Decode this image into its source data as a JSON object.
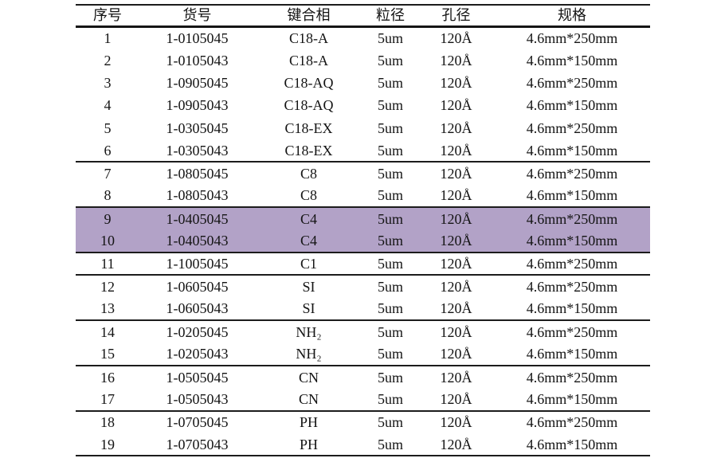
{
  "table": {
    "highlight_color": "#b2a2c7",
    "columns": [
      {
        "key": "no",
        "label": "序号"
      },
      {
        "key": "code",
        "label": "货号"
      },
      {
        "key": "phase",
        "label": "键合相"
      },
      {
        "key": "particle",
        "label": "粒径"
      },
      {
        "key": "pore",
        "label": "孔径"
      },
      {
        "key": "spec",
        "label": "规格"
      }
    ],
    "rows": [
      {
        "no": "1",
        "code": "1-0105045",
        "phase": "C18-A",
        "particle": "5um",
        "pore": "120Å",
        "spec": "4.6mm*250mm",
        "highlight": false,
        "group_end": false
      },
      {
        "no": "2",
        "code": "1-0105043",
        "phase": "C18-A",
        "particle": "5um",
        "pore": "120Å",
        "spec": "4.6mm*150mm",
        "highlight": false,
        "group_end": false
      },
      {
        "no": "3",
        "code": "1-0905045",
        "phase": "C18-AQ",
        "particle": "5um",
        "pore": "120Å",
        "spec": "4.6mm*250mm",
        "highlight": false,
        "group_end": false
      },
      {
        "no": "4",
        "code": "1-0905043",
        "phase": "C18-AQ",
        "particle": "5um",
        "pore": "120Å",
        "spec": "4.6mm*150mm",
        "highlight": false,
        "group_end": false
      },
      {
        "no": "5",
        "code": "1-0305045",
        "phase": "C18-EX",
        "particle": "5um",
        "pore": "120Å",
        "spec": "4.6mm*250mm",
        "highlight": false,
        "group_end": false
      },
      {
        "no": "6",
        "code": "1-0305043",
        "phase": "C18-EX",
        "particle": "5um",
        "pore": "120Å",
        "spec": "4.6mm*150mm",
        "highlight": false,
        "group_end": true
      },
      {
        "no": "7",
        "code": "1-0805045",
        "phase": "C8",
        "particle": "5um",
        "pore": "120Å",
        "spec": "4.6mm*250mm",
        "highlight": false,
        "group_end": false
      },
      {
        "no": "8",
        "code": "1-0805043",
        "phase": "C8",
        "particle": "5um",
        "pore": "120Å",
        "spec": "4.6mm*150mm",
        "highlight": false,
        "group_end": true
      },
      {
        "no": "9",
        "code": "1-0405045",
        "phase": "C4",
        "particle": "5um",
        "pore": "120Å",
        "spec": "4.6mm*250mm",
        "highlight": true,
        "group_end": false
      },
      {
        "no": "10",
        "code": "1-0405043",
        "phase": "C4",
        "particle": "5um",
        "pore": "120Å",
        "spec": "4.6mm*150mm",
        "highlight": true,
        "group_end": true
      },
      {
        "no": "11",
        "code": "1-1005045",
        "phase": "C1",
        "particle": "5um",
        "pore": "120Å",
        "spec": "4.6mm*250mm",
        "highlight": false,
        "group_end": true
      },
      {
        "no": "12",
        "code": "1-0605045",
        "phase": "SI",
        "particle": "5um",
        "pore": "120Å",
        "spec": "4.6mm*250mm",
        "highlight": false,
        "group_end": false
      },
      {
        "no": "13",
        "code": "1-0605043",
        "phase": "SI",
        "particle": "5um",
        "pore": "120Å",
        "spec": "4.6mm*150mm",
        "highlight": false,
        "group_end": true
      },
      {
        "no": "14",
        "code": "1-0205045",
        "phase": "NH₂",
        "particle": "5um",
        "pore": "120Å",
        "spec": "4.6mm*250mm",
        "highlight": false,
        "group_end": false
      },
      {
        "no": "15",
        "code": "1-0205043",
        "phase": "NH₂",
        "particle": "5um",
        "pore": "120Å",
        "spec": "4.6mm*150mm",
        "highlight": false,
        "group_end": true
      },
      {
        "no": "16",
        "code": "1-0505045",
        "phase": "CN",
        "particle": "5um",
        "pore": "120Å",
        "spec": "4.6mm*250mm",
        "highlight": false,
        "group_end": false
      },
      {
        "no": "17",
        "code": "1-0505043",
        "phase": "CN",
        "particle": "5um",
        "pore": "120Å",
        "spec": "4.6mm*150mm",
        "highlight": false,
        "group_end": true
      },
      {
        "no": "18",
        "code": "1-0705045",
        "phase": "PH",
        "particle": "5um",
        "pore": "120Å",
        "spec": "4.6mm*250mm",
        "highlight": false,
        "group_end": false
      },
      {
        "no": "19",
        "code": "1-0705043",
        "phase": "PH",
        "particle": "5um",
        "pore": "120Å",
        "spec": "4.6mm*150mm",
        "highlight": false,
        "group_end": true
      }
    ]
  }
}
